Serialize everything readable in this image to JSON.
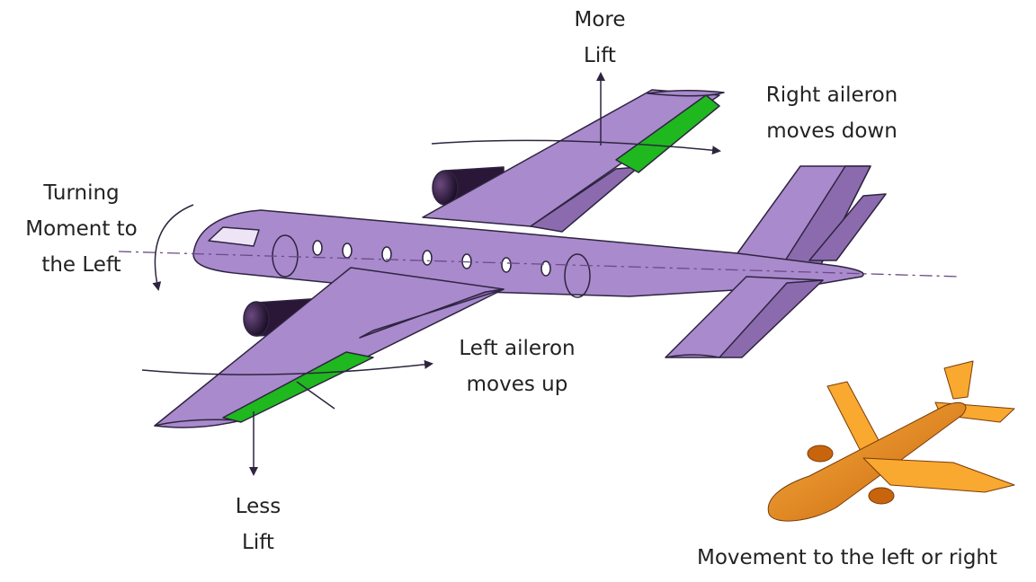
{
  "labels": {
    "more_lift": [
      "More",
      "Lift"
    ],
    "right_aileron": [
      "Right aileron",
      "moves down"
    ],
    "turning_moment": [
      "Turning",
      "Moment to",
      "the Left"
    ],
    "left_aileron": [
      "Left aileron",
      "moves up"
    ],
    "less_lift": [
      "Less",
      "Lift"
    ],
    "caption": "Movement to the left or right"
  },
  "colors": {
    "airframe": "#A98ACC",
    "airframe_dark": "#8B6BAE",
    "outline": "#2E2440",
    "aileron": "#1FB81F",
    "engine": "#2A1636",
    "small_plane": "#F29A1E",
    "small_plane_dark": "#B05A10"
  }
}
